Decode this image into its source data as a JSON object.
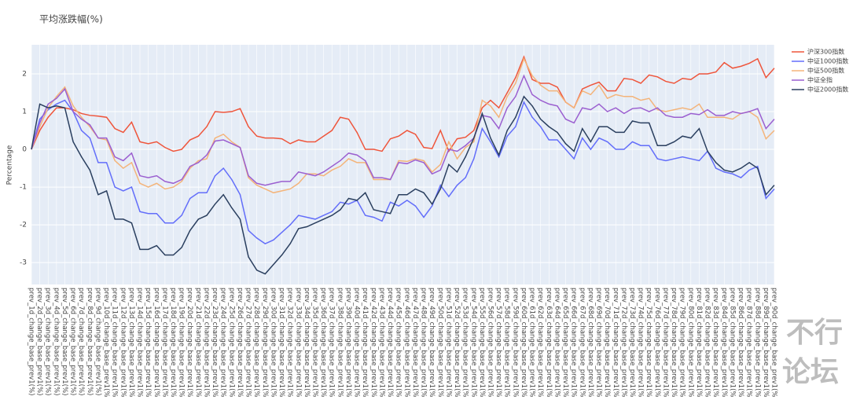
{
  "chart_data": {
    "type": "line",
    "title": "平均涨跌幅(%)",
    "y_label": "Percentage",
    "categories": [
      "prev_1d_change_base_prev1(%)",
      "prev_2d_change_base_prev1(%)",
      "prev_3d_change_base_prev1(%)",
      "prev_4d_change_base_prev1(%)",
      "prev_5d_change_base_prev1(%)",
      "prev_6d_change_base_prev1(%)",
      "prev_7d_change_base_prev1(%)",
      "prev_8d_change_base_prev1(%)",
      "prev_9d_change_base_prev1(%)",
      "prev_10d_change_base_prev1(%)",
      "prev_11d_change_base_prev1(%)",
      "prev_12d_change_base_prev1(%)",
      "prev_13d_change_base_prev1(%)",
      "prev_14d_change_base_prev1(%)",
      "prev_15d_change_base_prev1(%)",
      "prev_16d_change_base_prev1(%)",
      "prev_17d_change_base_prev1(%)",
      "prev_18d_change_base_prev1(%)",
      "prev_19d_change_base_prev1(%)",
      "prev_20d_change_base_prev1(%)",
      "prev_21d_change_base_prev1(%)",
      "prev_22d_change_base_prev1(%)",
      "prev_23d_change_base_prev1(%)",
      "prev_24d_change_base_prev1(%)",
      "prev_25d_change_base_prev1(%)",
      "prev_26d_change_base_prev1(%)",
      "prev_27d_change_base_prev1(%)",
      "prev_28d_change_base_prev1(%)",
      "prev_29d_change_base_prev1(%)",
      "prev_30d_change_base_prev1(%)",
      "prev_31d_change_base_prev1(%)",
      "prev_32d_change_base_prev1(%)",
      "prev_33d_change_base_prev1(%)",
      "prev_34d_change_base_prev1(%)",
      "prev_35d_change_base_prev1(%)",
      "prev_36d_change_base_prev1(%)",
      "prev_37d_change_base_prev1(%)",
      "prev_38d_change_base_prev1(%)",
      "prev_39d_change_base_prev1(%)",
      "prev_40d_change_base_prev1(%)",
      "prev_41d_change_base_prev1(%)",
      "prev_42d_change_base_prev1(%)",
      "prev_43d_change_base_prev1(%)",
      "prev_44d_change_base_prev1(%)",
      "prev_45d_change_base_prev1(%)",
      "prev_46d_change_base_prev1(%)",
      "prev_47d_change_base_prev1(%)",
      "prev_48d_change_base_prev1(%)",
      "prev_49d_change_base_prev1(%)",
      "prev_50d_change_base_prev1(%)",
      "prev_51d_change_base_prev1(%)",
      "prev_52d_change_base_prev1(%)",
      "prev_53d_change_base_prev1(%)",
      "prev_54d_change_base_prev1(%)",
      "prev_55d_change_base_prev1(%)",
      "prev_56d_change_base_prev1(%)",
      "prev_57d_change_base_prev1(%)",
      "prev_58d_change_base_prev1(%)",
      "prev_59d_change_base_prev1(%)",
      "prev_60d_change_base_prev1(%)",
      "prev_61d_change_base_prev1(%)",
      "prev_62d_change_base_prev1(%)",
      "prev_63d_change_base_prev1(%)",
      "prev_64d_change_base_prev1(%)",
      "prev_65d_change_base_prev1(%)",
      "prev_66d_change_base_prev1(%)",
      "prev_67d_change_base_prev1(%)",
      "prev_68d_change_base_prev1(%)",
      "prev_69d_change_base_prev1(%)",
      "prev_70d_change_base_prev1(%)",
      "prev_71d_change_base_prev1(%)",
      "prev_72d_change_base_prev1(%)",
      "prev_73d_change_base_prev1(%)",
      "prev_74d_change_base_prev1(%)",
      "prev_75d_change_base_prev1(%)",
      "prev_76d_change_base_prev1(%)",
      "prev_77d_change_base_prev1(%)",
      "prev_78d_change_base_prev1(%)",
      "prev_79d_change_base_prev1(%)",
      "prev_80d_change_base_prev1(%)",
      "prev_81d_change_base_prev1(%)",
      "prev_82d_change_base_prev1(%)",
      "prev_83d_change_base_prev1(%)",
      "prev_84d_change_base_prev1(%)",
      "prev_85d_change_base_prev1(%)",
      "prev_86d_change_base_prev1(%)",
      "prev_87d_change_base_prev1(%)",
      "prev_88d_change_base_prev1(%)",
      "prev_89d_change_base_prev1(%)",
      "prev_90d_change_base_prev1(%)"
    ],
    "series": [
      {
        "name": "沪深300指数",
        "color": "#ef553b",
        "values": [
          0,
          0.5,
          0.85,
          1.1,
          1.1,
          1.05,
          0.95,
          0.9,
          0.88,
          0.85,
          0.55,
          0.45,
          0.72,
          0.2,
          0.15,
          0.2,
          0.05,
          -0.05,
          0.0,
          0.25,
          0.35,
          0.6,
          1.0,
          0.98,
          1.0,
          1.08,
          0.6,
          0.35,
          0.3,
          0.3,
          0.28,
          0.15,
          0.25,
          0.2,
          0.2,
          0.35,
          0.5,
          0.85,
          0.8,
          0.45,
          0.0,
          0.0,
          -0.05,
          0.28,
          0.35,
          0.5,
          0.4,
          0.05,
          0.02,
          0.5,
          -0.05,
          0.28,
          0.32,
          0.5,
          1.1,
          1.3,
          1.1,
          1.5,
          1.9,
          2.45,
          1.85,
          1.75,
          1.75,
          1.65,
          1.25,
          1.1,
          1.6,
          1.7,
          1.78,
          1.55,
          1.55,
          1.88,
          1.85,
          1.75,
          1.97,
          1.92,
          1.8,
          1.75,
          1.88,
          1.85,
          2.0,
          2.0,
          2.05,
          2.3,
          2.15,
          2.2,
          2.28,
          2.4,
          1.9,
          2.15
        ]
      },
      {
        "name": "中证1000指数",
        "color": "#636efa",
        "values": [
          0,
          0.8,
          1.05,
          1.2,
          1.3,
          1.0,
          0.5,
          0.3,
          -0.35,
          -0.35,
          -1.0,
          -1.1,
          -1.0,
          -1.65,
          -1.7,
          -1.7,
          -1.95,
          -1.95,
          -1.75,
          -1.3,
          -1.15,
          -1.15,
          -0.7,
          -0.5,
          -0.8,
          -1.2,
          -2.15,
          -2.35,
          -2.5,
          -2.4,
          -2.2,
          -2.0,
          -1.75,
          -1.8,
          -1.85,
          -1.75,
          -1.65,
          -1.4,
          -1.45,
          -1.35,
          -1.75,
          -1.8,
          -1.9,
          -1.4,
          -1.5,
          -1.35,
          -1.5,
          -1.8,
          -1.5,
          -0.95,
          -1.25,
          -0.95,
          -0.75,
          -0.25,
          0.55,
          0.2,
          -0.2,
          0.35,
          0.6,
          1.25,
          0.85,
          0.6,
          0.25,
          0.25,
          0.0,
          -0.25,
          0.3,
          0.0,
          0.3,
          0.2,
          0.0,
          0.0,
          0.2,
          0.1,
          0.1,
          -0.25,
          -0.3,
          -0.25,
          -0.2,
          -0.25,
          -0.3,
          -0.05,
          -0.5,
          -0.6,
          -0.65,
          -0.75,
          -0.55,
          -0.45,
          -1.3,
          -1.05
        ]
      },
      {
        "name": "中证500指数",
        "color": "#f4b47a",
        "values": [
          0,
          0.6,
          1.1,
          1.4,
          1.65,
          1.15,
          0.85,
          0.6,
          0.3,
          0.25,
          -0.3,
          -0.5,
          -0.35,
          -0.9,
          -1.0,
          -0.9,
          -1.05,
          -1.0,
          -0.85,
          -0.5,
          -0.3,
          -0.25,
          0.3,
          0.4,
          0.2,
          0.05,
          -0.75,
          -0.95,
          -1.05,
          -1.15,
          -1.1,
          -1.05,
          -0.9,
          -0.65,
          -0.65,
          -0.7,
          -0.55,
          -0.45,
          -0.25,
          -0.35,
          -0.35,
          -0.8,
          -0.8,
          -0.8,
          -0.3,
          -0.32,
          -0.25,
          -0.3,
          -0.6,
          -0.4,
          0.2,
          -0.25,
          0.05,
          0.2,
          1.3,
          1.15,
          0.85,
          1.4,
          1.75,
          2.4,
          1.95,
          1.7,
          1.55,
          1.55,
          1.25,
          1.1,
          1.55,
          1.45,
          1.7,
          1.35,
          1.45,
          1.4,
          1.4,
          1.3,
          1.35,
          1.05,
          1.0,
          1.05,
          1.1,
          1.05,
          1.2,
          0.85,
          0.85,
          0.85,
          0.8,
          0.95,
          1.0,
          0.85,
          0.28,
          0.5
        ]
      },
      {
        "name": "中证全指",
        "color": "#9b5fd0",
        "values": [
          0,
          0.7,
          1.2,
          1.35,
          1.6,
          1.0,
          0.8,
          0.65,
          0.3,
          0.3,
          -0.2,
          -0.3,
          -0.1,
          -0.7,
          -0.75,
          -0.7,
          -0.85,
          -0.9,
          -0.8,
          -0.45,
          -0.35,
          -0.15,
          0.22,
          0.25,
          0.15,
          0.05,
          -0.7,
          -0.9,
          -0.95,
          -0.9,
          -0.85,
          -0.85,
          -0.6,
          -0.65,
          -0.7,
          -0.6,
          -0.45,
          -0.3,
          -0.1,
          -0.15,
          -0.3,
          -0.75,
          -0.75,
          -0.8,
          -0.35,
          -0.38,
          -0.28,
          -0.35,
          -0.65,
          -0.55,
          0.0,
          -0.05,
          0.1,
          0.3,
          0.9,
          0.85,
          0.55,
          1.1,
          1.4,
          1.95,
          1.45,
          1.3,
          1.2,
          1.15,
          0.8,
          0.7,
          1.1,
          1.05,
          1.2,
          1.0,
          1.1,
          0.95,
          1.08,
          1.1,
          1.0,
          1.1,
          0.9,
          0.85,
          0.85,
          0.95,
          0.92,
          1.05,
          0.9,
          0.9,
          1.0,
          0.95,
          1.0,
          1.08,
          0.55,
          0.8
        ]
      },
      {
        "name": "中证2000指数",
        "color": "#2a3f5f",
        "values": [
          0,
          1.2,
          1.1,
          1.15,
          1.1,
          0.2,
          -0.2,
          -0.55,
          -1.2,
          -1.1,
          -1.85,
          -1.85,
          -1.95,
          -2.65,
          -2.65,
          -2.55,
          -2.8,
          -2.8,
          -2.6,
          -2.15,
          -1.85,
          -1.75,
          -1.45,
          -1.2,
          -1.55,
          -1.85,
          -2.85,
          -3.2,
          -3.3,
          -3.05,
          -2.8,
          -2.5,
          -2.1,
          -2.05,
          -1.95,
          -1.85,
          -1.75,
          -1.6,
          -1.3,
          -1.35,
          -1.15,
          -1.6,
          -1.65,
          -1.7,
          -1.2,
          -1.2,
          -1.05,
          -1.15,
          -1.45,
          -1.05,
          -0.4,
          -0.6,
          -0.2,
          0.3,
          0.95,
          0.3,
          -0.15,
          0.5,
          0.85,
          1.4,
          1.15,
          0.8,
          0.6,
          0.45,
          0.15,
          -0.05,
          0.55,
          0.2,
          0.6,
          0.6,
          0.45,
          0.45,
          0.75,
          0.7,
          0.7,
          0.1,
          0.1,
          0.2,
          0.35,
          0.3,
          0.55,
          -0.05,
          -0.35,
          -0.55,
          -0.6,
          -0.5,
          -0.35,
          -0.5,
          -1.2,
          -0.95
        ]
      }
    ],
    "ylim": [
      -3.58,
      2.77
    ],
    "yticks": [
      -3,
      -2,
      -1,
      0,
      1,
      2
    ],
    "grid": true,
    "legend": "right",
    "watermark": [
      "不行",
      "论坛"
    ]
  }
}
